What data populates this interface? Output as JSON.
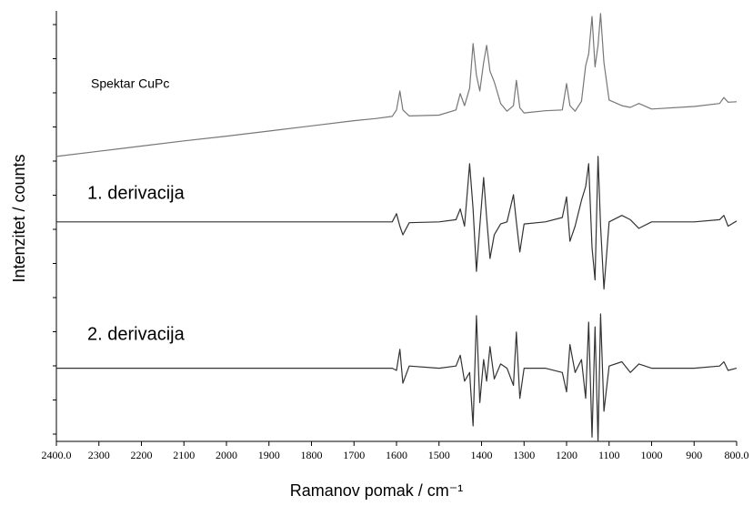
{
  "chart_data": {
    "type": "line",
    "xlabel": "Ramanov pomak / cm⁻¹",
    "ylabel": "Intenzitet / counts",
    "xlim": [
      2400,
      800
    ],
    "xticks": [
      {
        "value": 2400,
        "label": "2400.0"
      },
      2300,
      2200,
      2100,
      2000,
      1900,
      1800,
      1700,
      1600,
      1500,
      1400,
      1300,
      1200,
      1100,
      1000,
      900,
      {
        "value": 800,
        "label": "800.0"
      }
    ],
    "ylim": [
      0,
      100
    ],
    "x": [
      2400,
      2300,
      2200,
      2100,
      2000,
      1900,
      1800,
      1700,
      1650,
      1610,
      1600,
      1592,
      1585,
      1570,
      1500,
      1460,
      1450,
      1440,
      1428,
      1420,
      1412,
      1404,
      1395,
      1388,
      1380,
      1370,
      1355,
      1340,
      1325,
      1318,
      1310,
      1300,
      1250,
      1210,
      1200,
      1192,
      1180,
      1165,
      1155,
      1148,
      1140,
      1133,
      1126,
      1120,
      1112,
      1100,
      1070,
      1050,
      1030,
      1000,
      900,
      840,
      830,
      820,
      800
    ],
    "series": [
      {
        "name": "Spektar CuPc",
        "color": "#777777",
        "values": [
          66.2,
          67.4,
          68.6,
          69.8,
          70.9,
          72.1,
          73.3,
          74.5,
          75.0,
          75.5,
          77,
          81.4,
          77,
          75.6,
          75.8,
          77,
          80.8,
          78,
          82,
          92.4,
          85,
          81.4,
          88,
          92,
          86,
          83.5,
          78.5,
          76.7,
          78,
          83.9,
          77.5,
          76.3,
          76.8,
          77,
          83.1,
          78,
          76.7,
          79,
          87.3,
          90,
          98.7,
          87,
          92,
          99.4,
          88,
          79.3,
          78,
          77.6,
          78.5,
          77.2,
          77.8,
          78.5,
          79.9,
          78.8,
          78.9
        ]
      },
      {
        "name": "1. derivacija",
        "color": "#333333",
        "values": [
          51,
          51,
          51,
          51,
          51,
          51,
          51,
          51,
          51,
          51,
          52.9,
          50,
          48,
          50.8,
          51,
          51.5,
          54,
          50,
          64.5,
          54,
          39.5,
          50,
          61.3,
          52,
          42.5,
          48,
          50.5,
          51,
          57.3,
          51,
          44,
          50.5,
          51,
          52,
          56.8,
          46.5,
          50,
          56,
          59.2,
          64.5,
          45,
          37.5,
          66.2,
          50,
          35.4,
          51,
          52.5,
          51.5,
          49.5,
          51,
          51,
          51.5,
          52.5,
          50,
          51.2
        ]
      },
      {
        "name": "2. derivacija",
        "color": "#333333",
        "values": [
          17,
          17,
          17,
          17,
          17,
          17,
          17,
          17,
          17,
          17,
          16.5,
          21.4,
          13.5,
          17.5,
          17,
          17.5,
          20,
          14,
          16,
          3.6,
          29.2,
          9,
          19,
          14,
          22,
          14.5,
          18,
          17,
          13,
          25.4,
          10,
          17,
          17,
          16,
          11.5,
          22.5,
          16,
          19,
          10,
          27.7,
          1,
          26.6,
          0,
          29.6,
          7,
          17.5,
          18.5,
          16,
          18,
          17,
          17,
          17.5,
          18.5,
          16.5,
          17
        ]
      }
    ]
  }
}
